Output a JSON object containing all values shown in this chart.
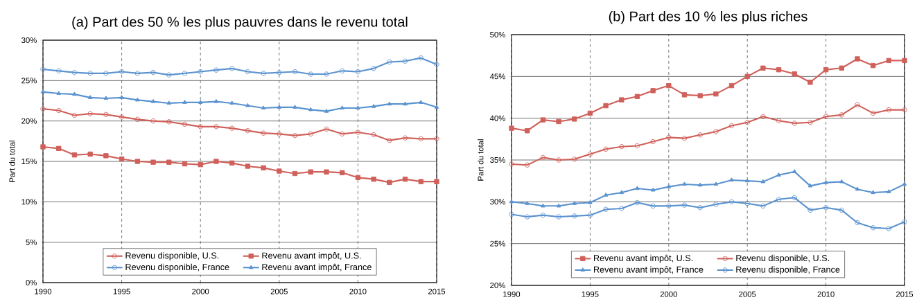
{
  "chart_data": [
    {
      "type": "line",
      "title": "(a) Part des 50 % les plus pauvres dans le revenu total",
      "ylabel": "Part du total",
      "x": [
        1990,
        1991,
        1992,
        1993,
        1994,
        1995,
        1996,
        1997,
        1998,
        1999,
        2000,
        2001,
        2002,
        2003,
        2004,
        2005,
        2006,
        2007,
        2008,
        2009,
        2010,
        2011,
        2012,
        2013,
        2014,
        2015
      ],
      "xlim": [
        1990,
        2015
      ],
      "xticks": [
        1990,
        1995,
        2000,
        2005,
        2010,
        2015
      ],
      "ylim": [
        0,
        30
      ],
      "yticks": [
        {
          "value": 0,
          "label": "0%"
        },
        {
          "value": 5,
          "label": "5%"
        },
        {
          "value": 10,
          "label": "10%"
        },
        {
          "value": 15,
          "label": "15%"
        },
        {
          "value": 20,
          "label": "20%"
        },
        {
          "value": 25,
          "label": "25%"
        },
        {
          "value": 30,
          "label": "30%"
        }
      ],
      "grid": true,
      "legend": "bottom",
      "line_style": "solid",
      "series": [
        {
          "name": "Revenu disponible, U.S.",
          "color": "#d0605a",
          "marker": "circle",
          "values": [
            21.5,
            21.3,
            20.7,
            20.9,
            20.8,
            20.5,
            20.2,
            20.0,
            19.9,
            19.6,
            19.3,
            19.3,
            19.1,
            18.8,
            18.5,
            18.4,
            18.2,
            18.4,
            19.0,
            18.4,
            18.6,
            18.3,
            17.6,
            17.9,
            17.8,
            17.8
          ]
        },
        {
          "name": "Revenu avant impôt, U.S.",
          "color": "#d0605a",
          "marker": "square",
          "values": [
            16.8,
            16.6,
            15.8,
            15.9,
            15.7,
            15.3,
            15.0,
            14.9,
            14.9,
            14.7,
            14.6,
            15.0,
            14.8,
            14.4,
            14.2,
            13.8,
            13.5,
            13.7,
            13.7,
            13.6,
            13.0,
            12.8,
            12.4,
            12.8,
            12.5,
            12.5
          ]
        },
        {
          "name": "Revenu disponible, France",
          "color": "#5b93cf",
          "marker": "circle",
          "values": [
            26.4,
            26.2,
            26.0,
            25.9,
            25.9,
            26.1,
            25.9,
            26.0,
            25.7,
            25.9,
            26.1,
            26.3,
            26.5,
            26.1,
            25.9,
            26.0,
            26.1,
            25.8,
            25.8,
            26.2,
            26.1,
            26.5,
            27.3,
            27.4,
            27.8,
            27.0
          ]
        },
        {
          "name": "Revenu avant impôt, France",
          "color": "#5b93cf",
          "marker": "triangle",
          "values": [
            23.6,
            23.4,
            23.3,
            22.9,
            22.8,
            22.9,
            22.6,
            22.4,
            22.2,
            22.3,
            22.3,
            22.4,
            22.2,
            21.9,
            21.6,
            21.7,
            21.7,
            21.4,
            21.2,
            21.6,
            21.6,
            21.8,
            22.1,
            22.1,
            22.3,
            21.7
          ]
        }
      ]
    },
    {
      "type": "line",
      "title": "(b) Part des 10 % les plus riches",
      "ylabel": "Part du total",
      "x": [
        1990,
        1991,
        1992,
        1993,
        1994,
        1995,
        1996,
        1997,
        1998,
        1999,
        2000,
        2001,
        2002,
        2003,
        2004,
        2005,
        2006,
        2007,
        2008,
        2009,
        2010,
        2011,
        2012,
        2013,
        2014,
        2015
      ],
      "xlim": [
        1990,
        2015
      ],
      "xticks": [
        1990,
        1995,
        2000,
        2005,
        2010,
        2015
      ],
      "ylim": [
        20,
        50
      ],
      "yticks": [
        {
          "value": 20,
          "label": "20%"
        },
        {
          "value": 25,
          "label": "25%"
        },
        {
          "value": 30,
          "label": "30%"
        },
        {
          "value": 35,
          "label": "35%"
        },
        {
          "value": 40,
          "label": "40%"
        },
        {
          "value": 45,
          "label": "45%"
        },
        {
          "value": 50,
          "label": "50%"
        }
      ],
      "grid": true,
      "legend": "bottom",
      "line_style": "solid",
      "series": [
        {
          "name": "Revenu avant impôt, U.S.",
          "color": "#d0605a",
          "marker": "square",
          "values": [
            38.8,
            38.5,
            39.8,
            39.6,
            39.9,
            40.6,
            41.5,
            42.2,
            42.6,
            43.3,
            43.9,
            42.8,
            42.7,
            42.9,
            43.9,
            45.0,
            46.0,
            45.8,
            45.3,
            44.3,
            45.8,
            46.0,
            47.1,
            46.3,
            46.9,
            46.9
          ]
        },
        {
          "name": "Revenu disponible, U.S.",
          "color": "#d0605a",
          "marker": "circle",
          "values": [
            34.5,
            34.4,
            35.3,
            35.0,
            35.1,
            35.7,
            36.3,
            36.6,
            36.7,
            37.2,
            37.7,
            37.6,
            38.0,
            38.4,
            39.1,
            39.5,
            40.2,
            39.7,
            39.4,
            39.5,
            40.2,
            40.4,
            41.6,
            40.6,
            41.0,
            41.0
          ]
        },
        {
          "name": "Revenu avant impôt, France",
          "color": "#5b93cf",
          "marker": "triangle",
          "values": [
            30.0,
            29.8,
            29.5,
            29.5,
            29.8,
            29.9,
            30.8,
            31.1,
            31.6,
            31.4,
            31.8,
            32.1,
            32.0,
            32.1,
            32.6,
            32.5,
            32.4,
            33.2,
            33.6,
            31.9,
            32.3,
            32.4,
            31.5,
            31.1,
            31.2,
            32.1
          ]
        },
        {
          "name": "Revenu disponible, France",
          "color": "#5b93cf",
          "marker": "circle",
          "values": [
            28.5,
            28.2,
            28.4,
            28.2,
            28.3,
            28.4,
            29.1,
            29.2,
            29.9,
            29.5,
            29.5,
            29.6,
            29.3,
            29.7,
            30.0,
            29.8,
            29.5,
            30.3,
            30.5,
            29.0,
            29.3,
            29.0,
            27.5,
            26.9,
            26.8,
            27.6
          ]
        }
      ]
    }
  ]
}
